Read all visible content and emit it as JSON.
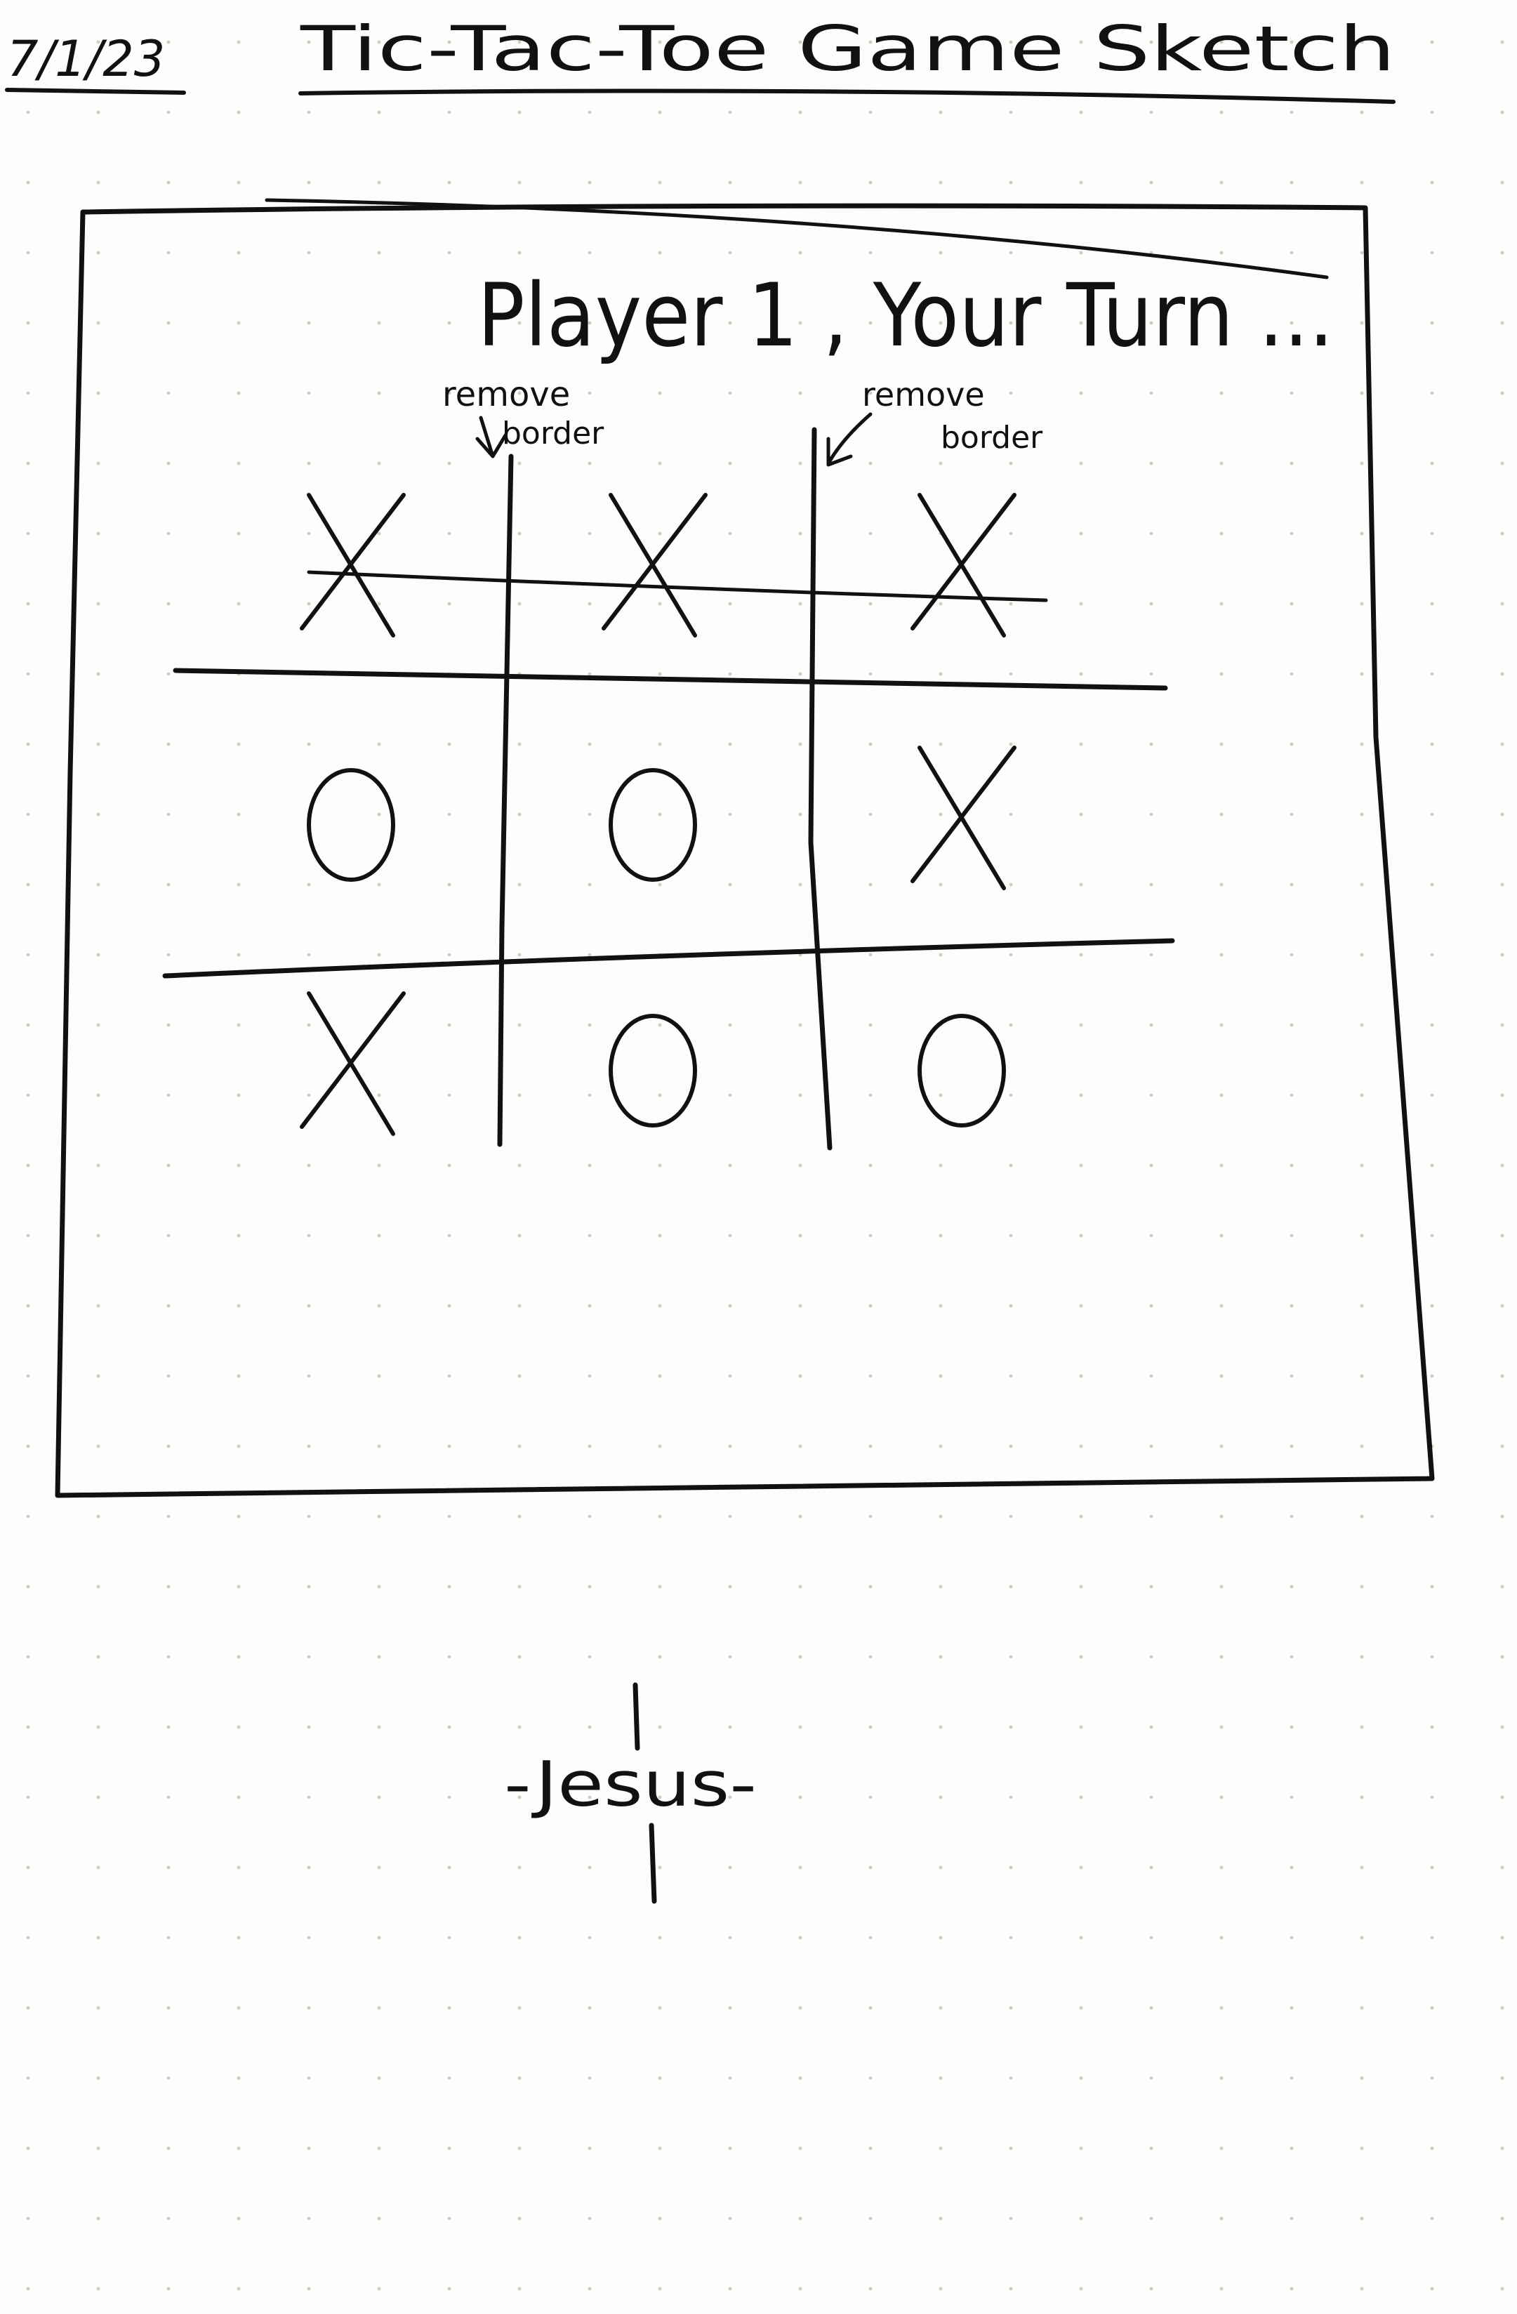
{
  "header": {
    "date": "7/1/23",
    "title": "Tic-Tac-Toe Game Sketch"
  },
  "game_window": {
    "status_text": "Player 1 , Your Turn ...",
    "annotations": [
      {
        "text_line1": "remove",
        "text_line2": "border"
      },
      {
        "text_line1": "remove",
        "text_line2": "border"
      }
    ],
    "board": [
      [
        "X",
        "X",
        "X"
      ],
      [
        "O",
        "O",
        "X"
      ],
      [
        "X",
        "O",
        "O"
      ]
    ],
    "winning_line": {
      "row": 0
    }
  },
  "footer": {
    "signature": "-Jesus-"
  }
}
